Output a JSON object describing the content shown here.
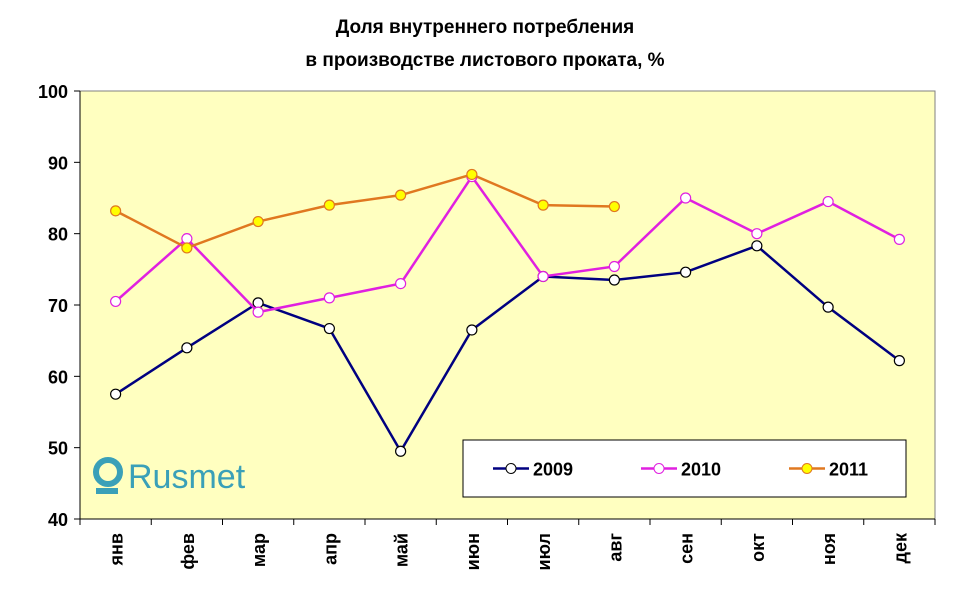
{
  "chart_data": {
    "type": "line",
    "title": [
      "Доля внутреннего потребления",
      "в производстве листового проката, %"
    ],
    "logo": "Rusmet",
    "categories": [
      "янв",
      "фев",
      "мар",
      "апр",
      "май",
      "июн",
      "июл",
      "авг",
      "сен",
      "окт",
      "ноя",
      "дек"
    ],
    "series": [
      {
        "name": "2009",
        "color": "#000080",
        "marker_fill": "#ffffff",
        "values": [
          57.5,
          64,
          70.3,
          66.7,
          49.5,
          66.5,
          74,
          73.5,
          74.6,
          78.3,
          69.7,
          62.2
        ]
      },
      {
        "name": "2010",
        "color": "#e020e0",
        "marker_fill": "#ffffff",
        "values": [
          70.5,
          79.3,
          69,
          71,
          73,
          88,
          74,
          75.4,
          85,
          80,
          84.5,
          79.2
        ]
      },
      {
        "name": "2011",
        "color": "#e07820",
        "marker_fill": "#ffff00",
        "values": [
          83.2,
          78,
          81.7,
          84,
          85.4,
          88.3,
          84,
          83.8,
          null,
          null,
          null,
          null
        ]
      }
    ],
    "ylim": [
      40,
      100
    ],
    "yticks": [
      40,
      50,
      60,
      70,
      80,
      90,
      100
    ],
    "plot_background": "#ffffc0",
    "legend": "lower right"
  }
}
